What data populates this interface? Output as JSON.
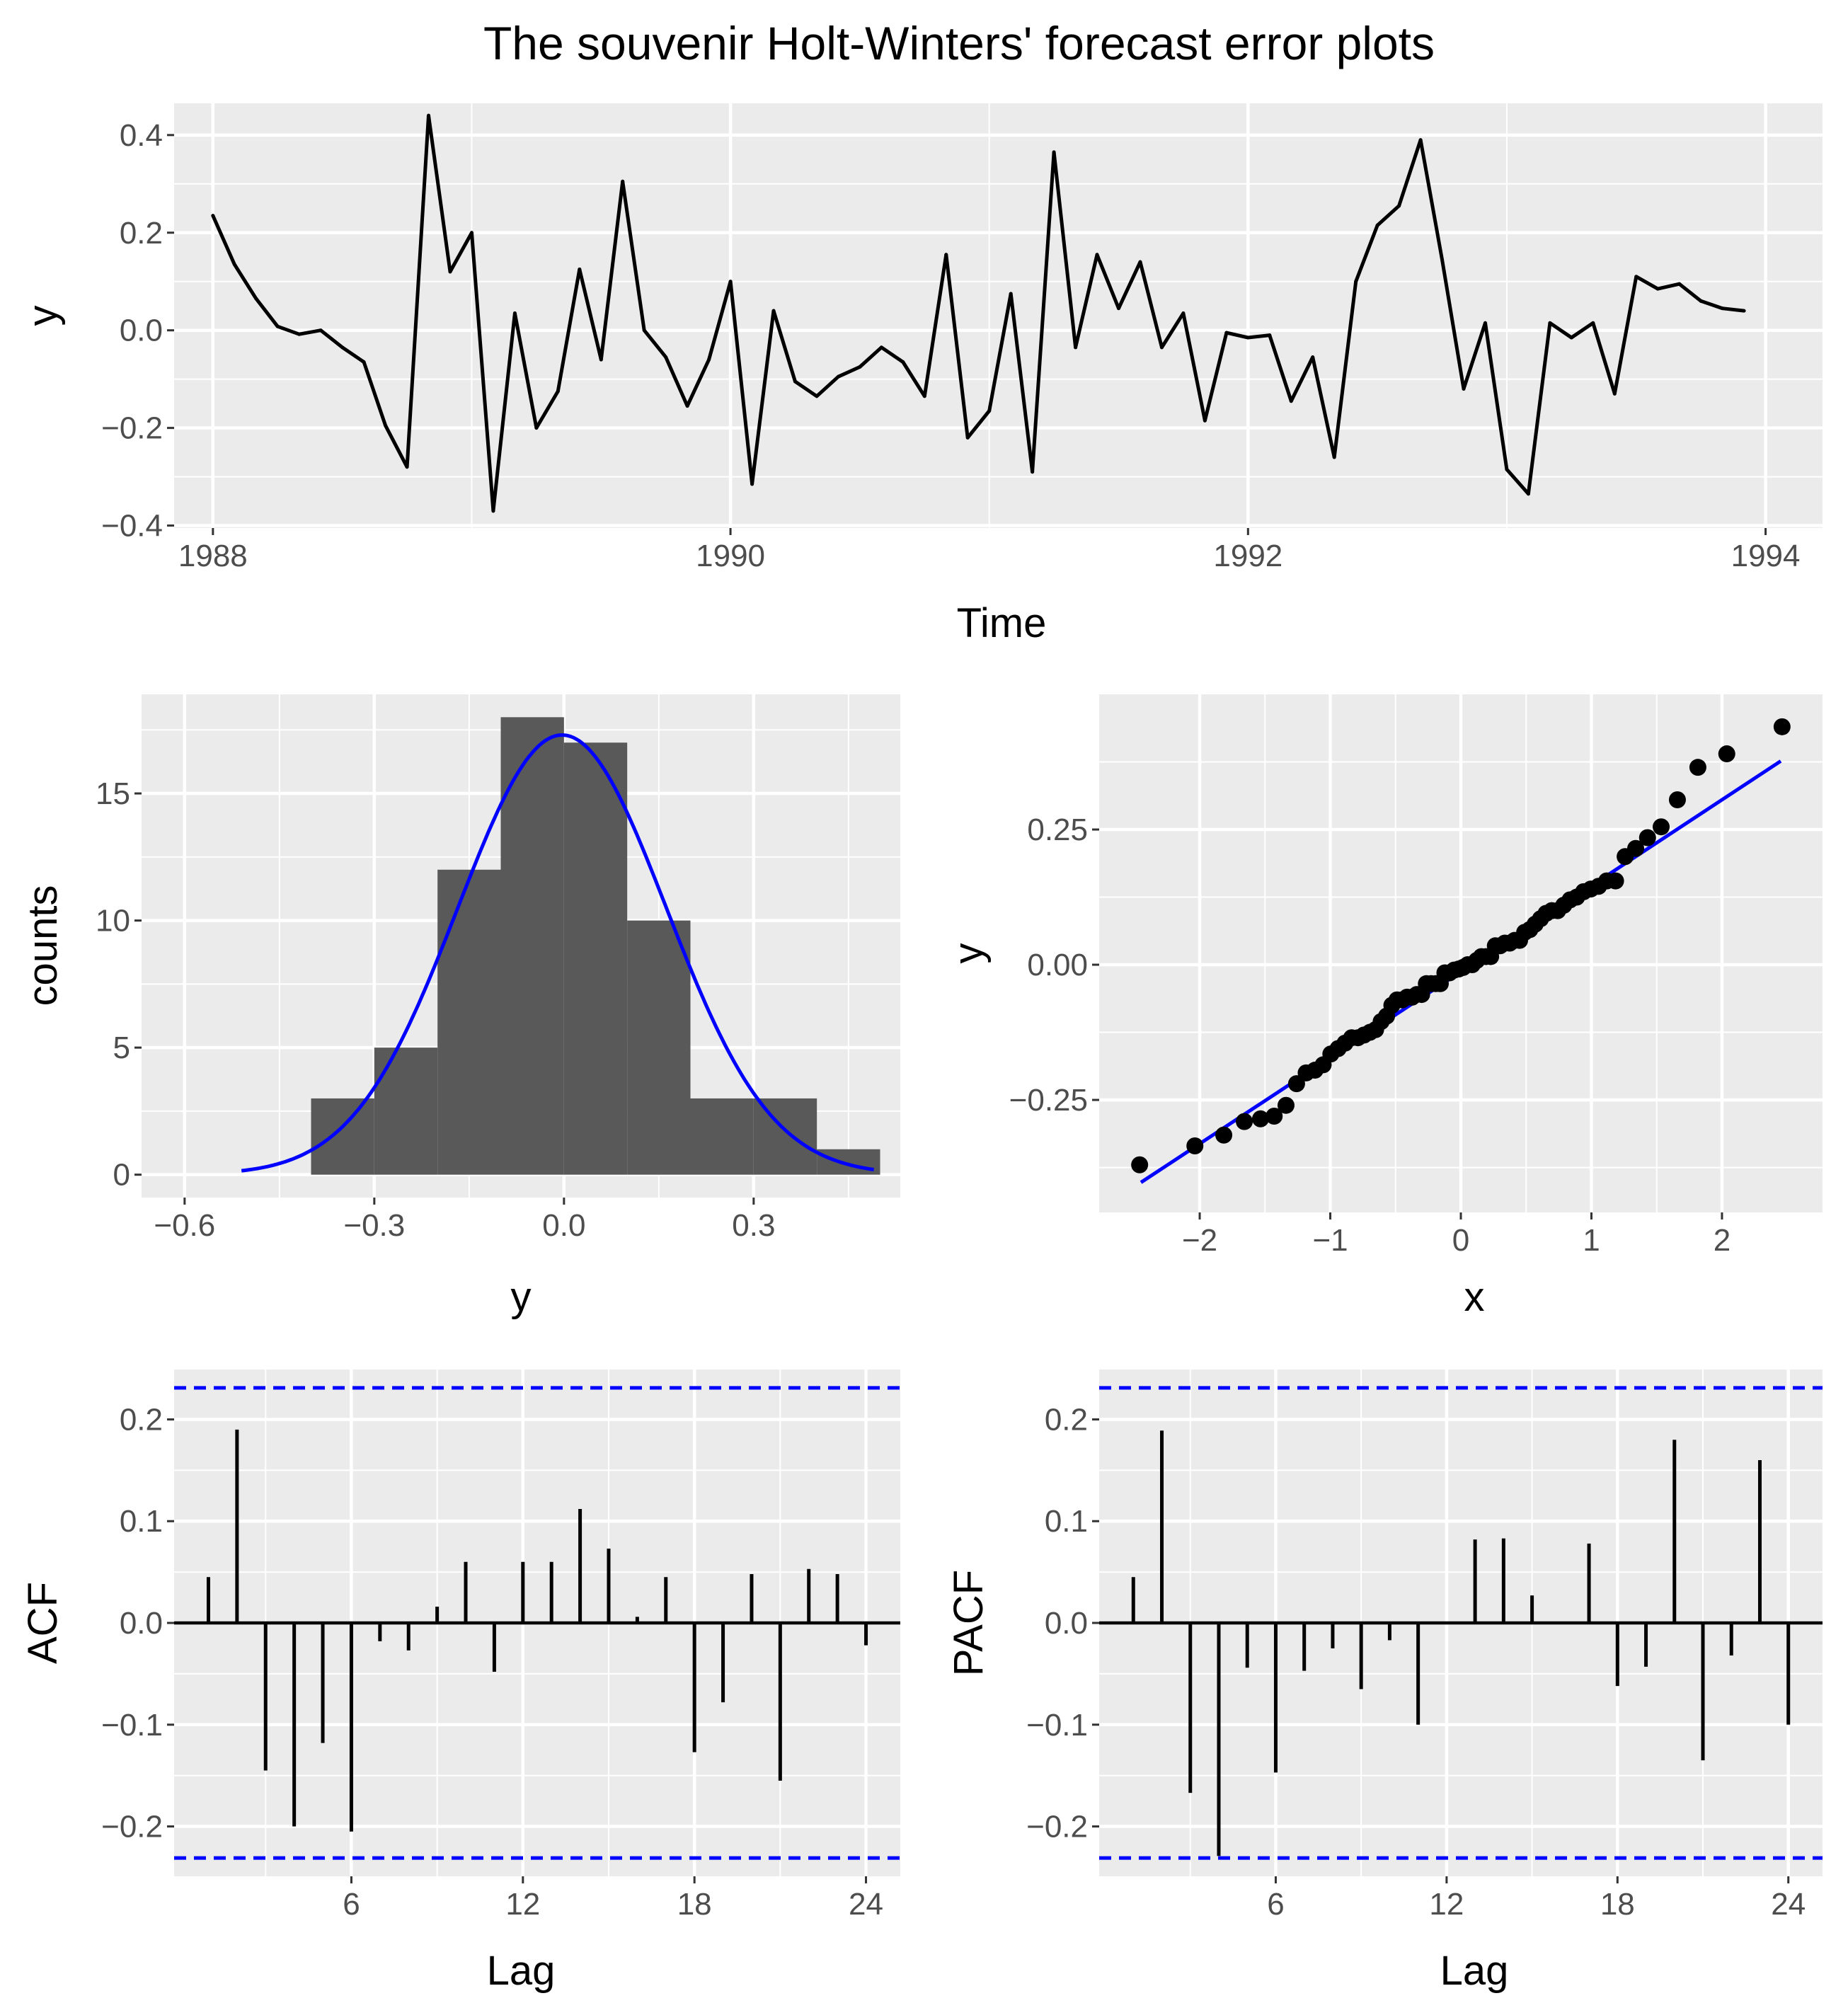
{
  "title": "The souvenir Holt-Winters' forecast error plots",
  "colors": {
    "panel": "#ebebeb",
    "grid": "#ffffff",
    "series": "#000000",
    "bars": "#595959",
    "accent": "#0000ff",
    "tick_text": "#4d4d4d"
  },
  "chart_data": [
    {
      "id": "timeseries",
      "type": "line",
      "xlabel": "Time",
      "ylabel": "y",
      "xlim": [
        1987.85,
        1994.22
      ],
      "ylim": [
        -0.405,
        0.465
      ],
      "xticks": [
        1988,
        1990,
        1992,
        1994
      ],
      "xtick_labels": [
        "1988",
        "1990",
        "1992",
        "1994"
      ],
      "xminor": [
        1989,
        1991,
        1993
      ],
      "yticks": [
        -0.4,
        -0.2,
        0.0,
        0.2,
        0.4
      ],
      "ytick_labels": [
        "−0.4",
        "−0.2",
        "0.0",
        "0.2",
        "0.4"
      ],
      "yminor": [
        -0.3,
        -0.1,
        0.1,
        0.3
      ],
      "start": 1988,
      "frequency": 12,
      "values": [
        0.235,
        0.135,
        0.065,
        0.008,
        -0.008,
        0.0,
        -0.035,
        -0.065,
        -0.195,
        -0.28,
        0.44,
        0.12,
        0.2,
        -0.37,
        0.035,
        -0.2,
        -0.125,
        0.125,
        -0.06,
        0.305,
        0.0,
        -0.055,
        -0.155,
        -0.06,
        0.1,
        -0.315,
        0.04,
        -0.105,
        -0.135,
        -0.095,
        -0.075,
        -0.035,
        -0.065,
        -0.135,
        0.155,
        -0.22,
        -0.165,
        0.075,
        -0.29,
        0.365,
        -0.035,
        0.155,
        0.045,
        0.14,
        -0.035,
        0.035,
        -0.185,
        -0.005,
        -0.015,
        -0.01,
        -0.145,
        -0.055,
        -0.26,
        0.1,
        0.215,
        0.255,
        0.39,
        0.145,
        -0.12,
        0.015,
        -0.285,
        -0.335,
        0.015,
        -0.015,
        0.015,
        -0.13,
        0.11,
        0.085,
        0.095,
        0.06,
        0.045,
        0.04
      ]
    },
    {
      "id": "histogram",
      "type": "bar",
      "xlabel": "y",
      "ylabel": "counts",
      "xlim": [
        -0.6681,
        0.5319
      ],
      "ylim": [
        -0.9,
        18.9
      ],
      "xticks": [
        -0.6,
        -0.3,
        0.0,
        0.3
      ],
      "xtick_labels": [
        "−0.6",
        "−0.3",
        "0.0",
        "0.3"
      ],
      "xminor": [
        -0.45,
        -0.15,
        0.15,
        0.45
      ],
      "yticks": [
        0,
        5,
        10,
        15
      ],
      "ytick_labels": [
        "0",
        "5",
        "10",
        "15"
      ],
      "yminor": [
        2.5,
        7.5,
        12.5,
        17.5
      ],
      "bin_edges": [
        -0.6,
        -0.5,
        -0.4,
        -0.3,
        -0.2,
        -0.1,
        0.0,
        0.1,
        0.2,
        0.3,
        0.4,
        0.5
      ],
      "counts": [
        0,
        0,
        3,
        5,
        12,
        18,
        17,
        10,
        3,
        3,
        1
      ],
      "normal_curve": {
        "mean": -0.003,
        "sd": 0.165,
        "xrange": [
          -0.51,
          0.49
        ],
        "peak_count": 17.3
      }
    },
    {
      "id": "qqplot",
      "type": "scatter",
      "xlabel": "x",
      "ylabel": "y",
      "xlim": [
        -2.77,
        2.77
      ],
      "ylim": [
        -0.458,
        0.5
      ],
      "xticks": [
        -2,
        -1,
        0,
        1,
        2
      ],
      "xtick_labels": [
        "−2",
        "−1",
        "0",
        "1",
        "2"
      ],
      "xminor": [
        -1.5,
        -0.5,
        0.5,
        1.5
      ],
      "yticks": [
        -0.25,
        0.0,
        0.25
      ],
      "ytick_labels": [
        "−0.25",
        "0.00",
        "0.25"
      ],
      "yminor": [
        -0.375,
        -0.125,
        0.125,
        0.375
      ],
      "n": 72,
      "sample_mean": 0.0,
      "sample_sd": 0.1606,
      "reference_line": {
        "intercept": -0.013,
        "slope": 0.159,
        "xrange": [
          -2.45,
          2.45
        ]
      }
    },
    {
      "id": "acf",
      "type": "bar",
      "xlabel": "Lag",
      "ylabel": "ACF",
      "xlim": [
        -0.2,
        25.2
      ],
      "ylim": [
        -0.249,
        0.249
      ],
      "lags": [
        1,
        2,
        3,
        4,
        5,
        6,
        7,
        8,
        9,
        10,
        11,
        12,
        13,
        14,
        15,
        16,
        17,
        18,
        19,
        20,
        21,
        22,
        23,
        24
      ],
      "values": [
        0.045,
        0.19,
        -0.145,
        -0.2,
        -0.118,
        -0.205,
        -0.018,
        -0.027,
        0.016,
        0.06,
        -0.048,
        0.06,
        0.06,
        0.112,
        0.073,
        0.006,
        0.045,
        -0.127,
        -0.078,
        0.048,
        -0.155,
        0.053,
        0.048,
        -0.022
      ],
      "ci": 0.231,
      "xticks": [
        6,
        12,
        18,
        24
      ],
      "xtick_labels": [
        "6",
        "12",
        "18",
        "24"
      ],
      "xminor": [
        3,
        9,
        15,
        21
      ],
      "yticks": [
        -0.2,
        -0.1,
        0.0,
        0.1,
        0.2
      ],
      "ytick_labels": [
        "−0.2",
        "−0.1",
        "0.0",
        "0.1",
        "0.2"
      ],
      "yminor": [
        -0.15,
        -0.05,
        0.05,
        0.15
      ]
    },
    {
      "id": "pacf",
      "type": "bar",
      "xlabel": "Lag",
      "ylabel": "PACF",
      "xlim": [
        -0.2,
        25.2
      ],
      "ylim": [
        -0.249,
        0.249
      ],
      "lags": [
        1,
        2,
        3,
        4,
        5,
        6,
        7,
        8,
        9,
        10,
        11,
        12,
        13,
        14,
        15,
        16,
        17,
        18,
        19,
        20,
        21,
        22,
        23,
        24
      ],
      "values": [
        0.045,
        0.189,
        -0.167,
        -0.229,
        -0.044,
        -0.147,
        -0.047,
        -0.025,
        -0.065,
        -0.017,
        -0.1,
        0.0,
        0.082,
        0.083,
        0.027,
        0.0,
        0.078,
        -0.062,
        -0.043,
        0.18,
        -0.135,
        -0.032,
        0.16,
        -0.1
      ],
      "ci": 0.231,
      "xticks": [
        6,
        12,
        18,
        24
      ],
      "xtick_labels": [
        "6",
        "12",
        "18",
        "24"
      ],
      "xminor": [
        3,
        9,
        15,
        21
      ],
      "yticks": [
        -0.2,
        -0.1,
        0.0,
        0.1,
        0.2
      ],
      "ytick_labels": [
        "−0.2",
        "−0.1",
        "0.0",
        "0.1",
        "0.2"
      ],
      "yminor": [
        -0.15,
        -0.05,
        0.05,
        0.15
      ]
    }
  ]
}
